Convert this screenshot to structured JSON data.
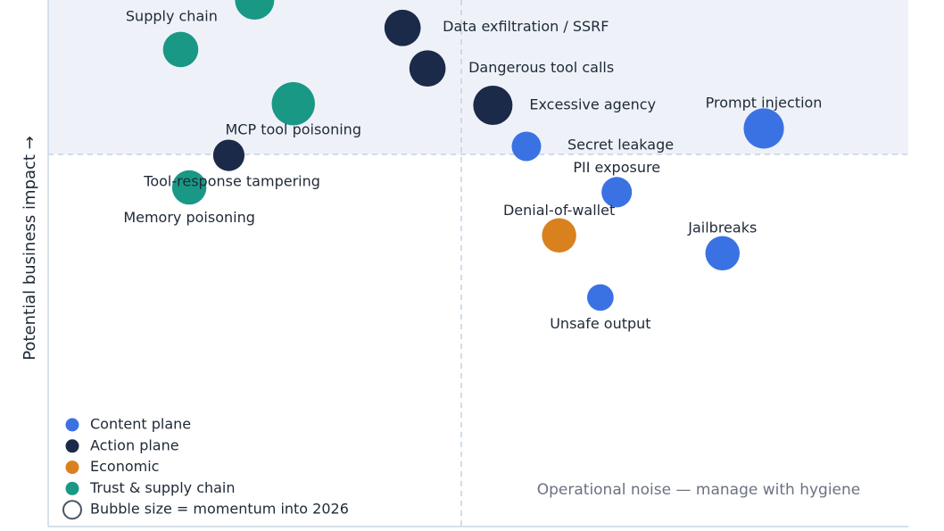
{
  "chart_data": {
    "type": "scatter",
    "ylabel": "Potential business impact →",
    "quadrant_note": "Operational noise — manage with hygiene",
    "grid": false,
    "legend_position": "bottom-left",
    "colors": {
      "content": "#3b72e3",
      "action": "#1b2a48",
      "economic": "#d9811f",
      "trust": "#1a9886",
      "highlight_band": "#eef2f8",
      "divider": "#c5d3e2",
      "axis": "#c9d6e3"
    },
    "legend": [
      {
        "key": "content",
        "label": "Content plane"
      },
      {
        "key": "action",
        "label": "Action plane"
      },
      {
        "key": "economic",
        "label": "Economic"
      },
      {
        "key": "trust",
        "label": "Trust & supply chain"
      },
      {
        "key": "size",
        "label": "Bubble size = momentum into 2026"
      }
    ],
    "points": [
      {
        "label": "Supply chain",
        "category": "trust",
        "x": 24.0,
        "y": 100.0,
        "size": 4
      },
      {
        "label": "",
        "category": "trust",
        "x": 15.4,
        "y": 90.6,
        "size": 3.6
      },
      {
        "label": "Data exfiltration / SSRF",
        "category": "action",
        "x": 41.2,
        "y": 94.7,
        "size": 3.7
      },
      {
        "label": "Dangerous tool calls",
        "category": "action",
        "x": 44.1,
        "y": 87.0,
        "size": 3.7
      },
      {
        "label": "Excessive agency",
        "category": "action",
        "x": 51.7,
        "y": 80.0,
        "size": 4.0
      },
      {
        "label": "MCP tool poisoning",
        "category": "trust",
        "x": 28.5,
        "y": 80.3,
        "size": 4.4
      },
      {
        "label": "Prompt injection",
        "category": "content",
        "x": 83.2,
        "y": 75.6,
        "size": 4.1
      },
      {
        "label": "Secret leakage",
        "category": "content",
        "x": 55.6,
        "y": 72.2,
        "size": 3.0
      },
      {
        "label": "",
        "category": "action",
        "x": 21.0,
        "y": 70.5,
        "size": 3.2
      },
      {
        "label": "Tool-response tampering",
        "category": "trust",
        "x": 16.4,
        "y": 64.4,
        "size": 3.5
      },
      {
        "label": "Memory poisoning",
        "category": "trust",
        "x": 16.4,
        "y": 58.6,
        "size": 0
      },
      {
        "label": "PII exposure",
        "category": "content",
        "x": 66.1,
        "y": 63.5,
        "size": 3.1
      },
      {
        "label": "Denial-of-wallet",
        "category": "economic",
        "x": 59.4,
        "y": 55.3,
        "size": 3.5
      },
      {
        "label": "Jailbreaks",
        "category": "content",
        "x": 78.4,
        "y": 51.9,
        "size": 3.5
      },
      {
        "label": "Unsafe output",
        "category": "content",
        "x": 64.2,
        "y": 43.5,
        "size": 2.7
      }
    ]
  }
}
